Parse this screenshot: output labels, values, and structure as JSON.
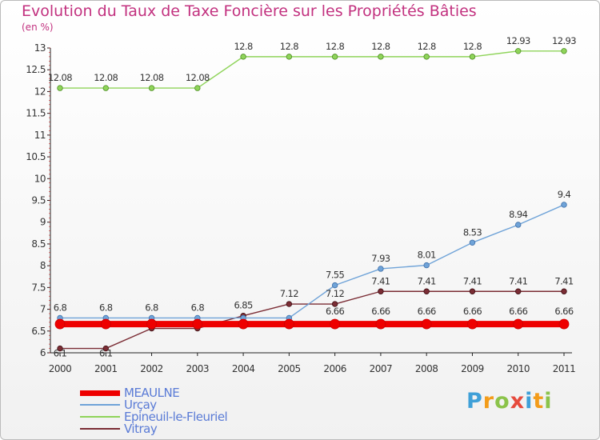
{
  "chart_data": {
    "type": "line",
    "title": "Evolution du Taux de Taxe Foncière sur les Propriétés Bâties",
    "ylabel": "(en %)",
    "x": [
      "2000",
      "2001",
      "2002",
      "2003",
      "2004",
      "2005",
      "2006",
      "2007",
      "2008",
      "2009",
      "2010",
      "2011"
    ],
    "ylim": [
      6,
      13
    ],
    "yticks": [
      "6",
      "6.5",
      "7",
      "7.5",
      "8",
      "8.5",
      "9",
      "9.5",
      "10",
      "10.5",
      "11",
      "11.5",
      "12",
      "12.5",
      "13"
    ],
    "grid": false,
    "legend_position": "bottom-left",
    "series": [
      {
        "name": "MEAULNE",
        "color": "#ee0000",
        "values": [
          6.66,
          6.66,
          6.66,
          6.66,
          6.66,
          6.66,
          6.66,
          6.66,
          6.66,
          6.66,
          6.66,
          6.66
        ],
        "labels": [
          "",
          "",
          "",
          "",
          "",
          "",
          "6.66",
          "6.66",
          "6.66",
          "6.66",
          "6.66",
          "6.66"
        ]
      },
      {
        "name": "Urçay",
        "color": "#6fa3d8",
        "values": [
          6.8,
          6.8,
          6.8,
          6.8,
          6.8,
          6.8,
          7.55,
          7.93,
          8.01,
          8.53,
          8.94,
          9.4
        ],
        "labels": [
          "6.8",
          "6.8",
          "6.8",
          "6.8",
          "",
          "",
          "7.55",
          "7.93",
          "8.01",
          "8.53",
          "8.94",
          "9.4"
        ]
      },
      {
        "name": "Epineuil-le-Fleuriel",
        "color": "#8fd45a",
        "values": [
          12.08,
          12.08,
          12.08,
          12.08,
          12.8,
          12.8,
          12.8,
          12.8,
          12.8,
          12.8,
          12.93,
          12.93
        ],
        "labels": [
          "12.08",
          "12.08",
          "12.08",
          "12.08",
          "12.8",
          "12.8",
          "12.8",
          "12.8",
          "12.8",
          "12.8",
          "12.93",
          "12.93"
        ]
      },
      {
        "name": "Vitray",
        "color": "#7b2d35",
        "values": [
          6.1,
          6.1,
          6.56,
          6.56,
          6.85,
          7.12,
          7.12,
          7.41,
          7.41,
          7.41,
          7.41,
          7.41
        ],
        "labels": [
          "6.1",
          "6.1",
          "",
          "",
          "6.85",
          "7.12",
          "7.12",
          "7.41",
          "7.41",
          "7.41",
          "7.41",
          "7.41"
        ]
      }
    ]
  },
  "branding": {
    "logo_letters": [
      "P",
      "r",
      "o",
      "x",
      "i",
      "t",
      "i"
    ],
    "logo_colors": [
      "#3fa0d8",
      "#f39c1a",
      "#8bc34a",
      "#e64a3c",
      "#3fa0d8",
      "#f39c1a",
      "#8bc34a"
    ]
  }
}
